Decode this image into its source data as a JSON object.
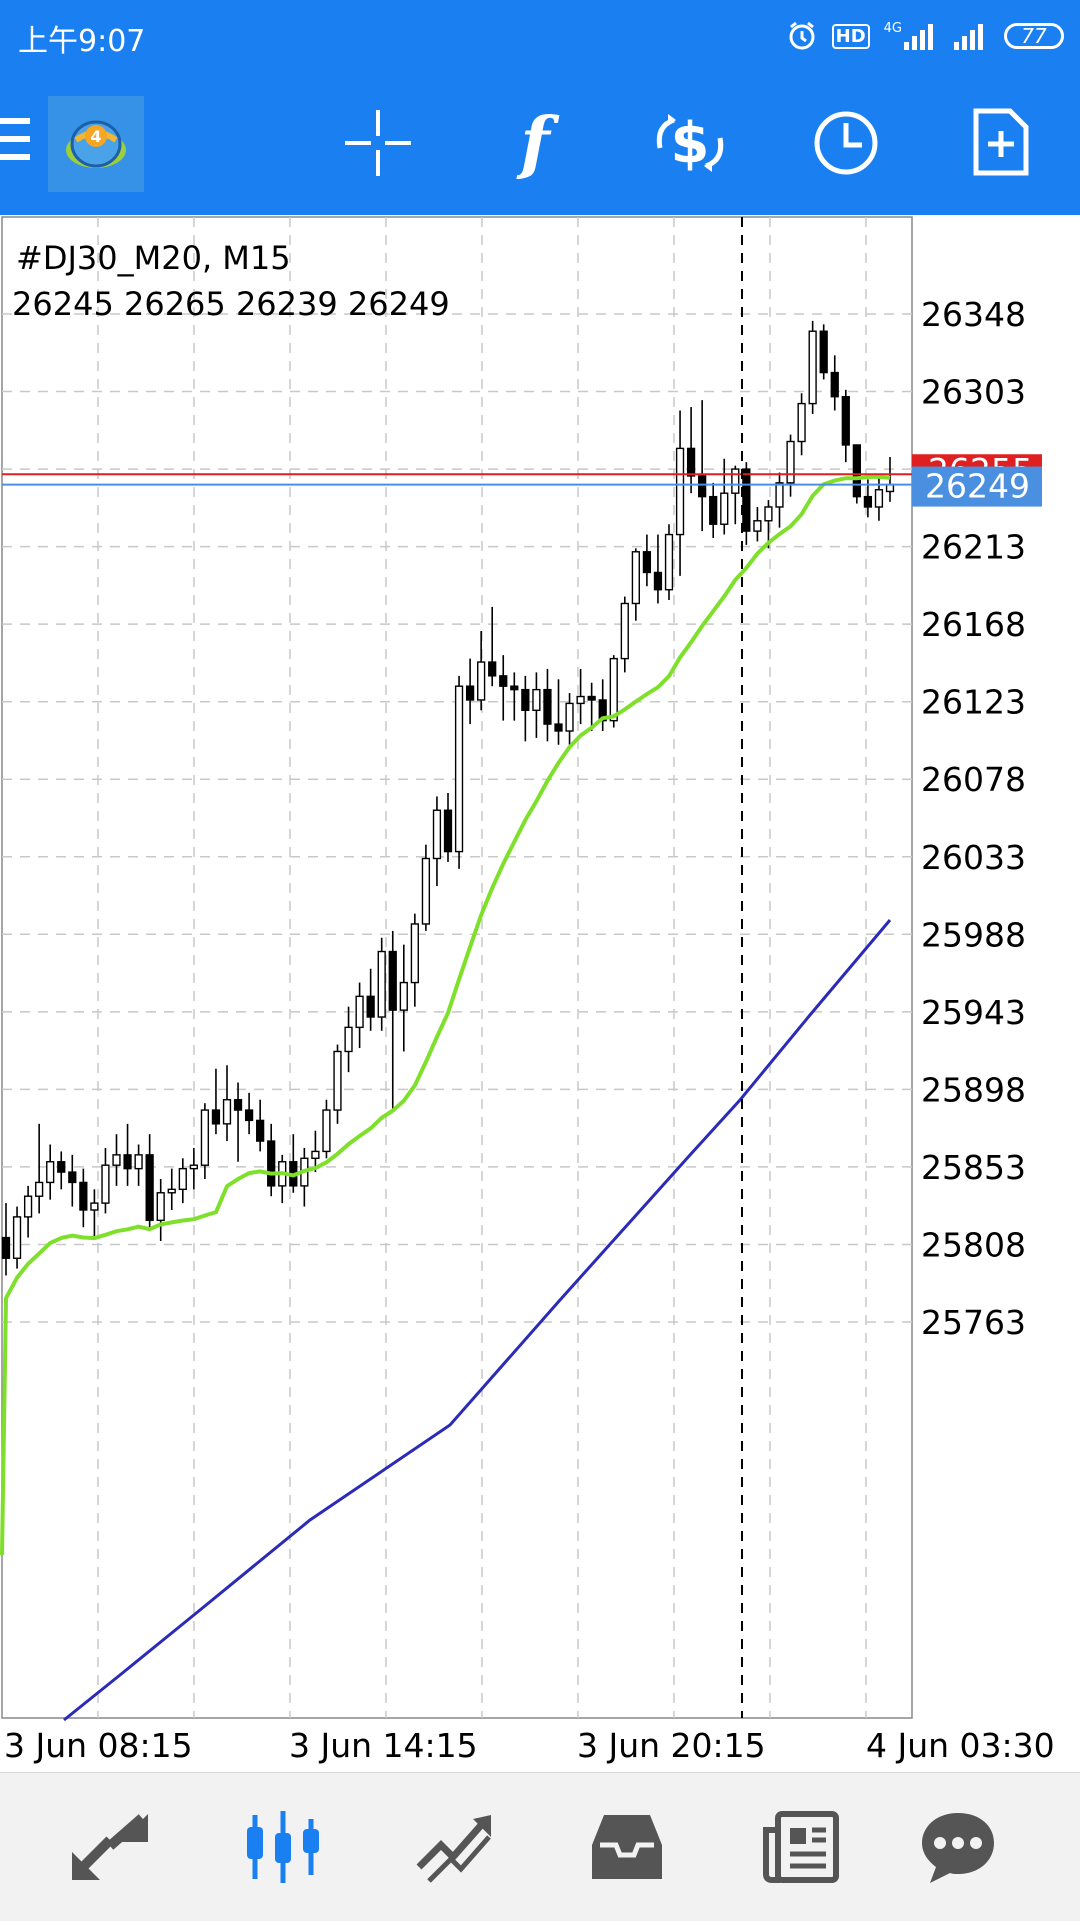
{
  "status_bar": {
    "time": "上午9:07",
    "hd": "HD",
    "net": "4G",
    "battery": "77"
  },
  "toolbar": {
    "icons": [
      "menu-icon",
      "metatrader-logo",
      "crosshair-icon",
      "indicators-icon",
      "trade-icon",
      "timeframe-icon",
      "new-order-icon"
    ],
    "indicators_glyph": "f"
  },
  "chart": {
    "symbol": "#DJ30_M20, M15",
    "ohlc": "26245 26265 26239 26249",
    "current_price": "26249",
    "bid_label_partial": "26255"
  },
  "chart_data": {
    "type": "candlestick",
    "price_axis_labels": [
      "26348",
      "26303",
      "26213",
      "26168",
      "26123",
      "26078",
      "26033",
      "25988",
      "25943",
      "25898",
      "25853",
      "25808",
      "25763"
    ],
    "time_axis_labels": [
      "3 Jun 08:15",
      "3 Jun 14:15",
      "3 Jun 20:15",
      "4 Jun 03:30"
    ],
    "ylim": [
      25720,
      26390
    ],
    "grid": true,
    "series": [
      {
        "name": "",
        "color": "#7ee02a",
        "kind": "moving-average"
      },
      {
        "name": "",
        "color": "#2b2bb8",
        "kind": "moving-average"
      }
    ],
    "candles": [
      [
        25812,
        25832,
        25790,
        25800
      ],
      [
        25800,
        25830,
        25794,
        25824
      ],
      [
        25824,
        25842,
        25812,
        25836
      ],
      [
        25836,
        25878,
        25826,
        25844
      ],
      [
        25844,
        25866,
        25834,
        25856
      ],
      [
        25856,
        25862,
        25840,
        25850
      ],
      [
        25850,
        25860,
        25830,
        25844
      ],
      [
        25844,
        25852,
        25818,
        25828
      ],
      [
        25828,
        25840,
        25812,
        25832
      ],
      [
        25832,
        25864,
        25826,
        25854
      ],
      [
        25854,
        25872,
        25842,
        25860
      ],
      [
        25860,
        25878,
        25842,
        25852
      ],
      [
        25852,
        25866,
        25842,
        25860
      ],
      [
        25860,
        25872,
        25818,
        25822
      ],
      [
        25822,
        25846,
        25810,
        25838
      ],
      [
        25838,
        25852,
        25828,
        25840
      ],
      [
        25840,
        25858,
        25832,
        25852
      ],
      [
        25852,
        25864,
        25840,
        25854
      ],
      [
        25854,
        25890,
        25846,
        25886
      ],
      [
        25886,
        25910,
        25872,
        25878
      ],
      [
        25878,
        25912,
        25868,
        25892
      ],
      [
        25892,
        25902,
        25856,
        25886
      ],
      [
        25886,
        25896,
        25872,
        25880
      ],
      [
        25880,
        25892,
        25862,
        25868
      ],
      [
        25868,
        25878,
        25836,
        25842
      ],
      [
        25842,
        25860,
        25832,
        25856
      ],
      [
        25856,
        25872,
        25838,
        25842
      ],
      [
        25842,
        25864,
        25830,
        25858
      ],
      [
        25858,
        25874,
        25850,
        25862
      ],
      [
        25862,
        25892,
        25858,
        25886
      ],
      [
        25886,
        25924,
        25878,
        25920
      ],
      [
        25920,
        25946,
        25908,
        25934
      ],
      [
        25934,
        25960,
        25922,
        25952
      ],
      [
        25952,
        25968,
        25932,
        25940
      ],
      [
        25940,
        25986,
        25932,
        25978
      ],
      [
        25978,
        25990,
        25886,
        25944
      ],
      [
        25944,
        25982,
        25920,
        25960
      ],
      [
        25960,
        26000,
        25946,
        25994
      ],
      [
        25994,
        26040,
        25990,
        26032
      ],
      [
        26032,
        26068,
        26016,
        26060
      ],
      [
        26060,
        26070,
        26030,
        26036
      ],
      [
        26036,
        26138,
        26026,
        26132
      ],
      [
        26132,
        26148,
        26110,
        26124
      ],
      [
        26124,
        26164,
        26118,
        26146
      ],
      [
        26146,
        26178,
        26132,
        26138
      ],
      [
        26138,
        26150,
        26112,
        26132
      ],
      [
        26132,
        26140,
        26112,
        26130
      ],
      [
        26130,
        26138,
        26100,
        26118
      ],
      [
        26118,
        26140,
        26102,
        26130
      ],
      [
        26130,
        26142,
        26100,
        26110
      ],
      [
        26110,
        26136,
        26098,
        26106
      ],
      [
        26106,
        26128,
        26098,
        26122
      ],
      [
        26122,
        26142,
        26110,
        26126
      ],
      [
        26126,
        26134,
        26106,
        26124
      ],
      [
        26124,
        26136,
        26106,
        26112
      ],
      [
        26112,
        26150,
        26108,
        26148
      ],
      [
        26148,
        26184,
        26140,
        26180
      ],
      [
        26180,
        26212,
        26170,
        26210
      ],
      [
        26210,
        26220,
        26190,
        26198
      ],
      [
        26198,
        26220,
        26180,
        26188
      ],
      [
        26188,
        26226,
        26182,
        26220
      ],
      [
        26220,
        26292,
        26196,
        26270
      ],
      [
        26270,
        26294,
        26244,
        26254
      ],
      [
        26254,
        26298,
        26222,
        26242
      ],
      [
        26242,
        26250,
        26218,
        26226
      ],
      [
        26226,
        26264,
        26220,
        26244
      ],
      [
        26244,
        26260,
        26226,
        26258
      ],
      [
        26258,
        26262,
        26214,
        26222
      ],
      [
        26222,
        26236,
        26216,
        26228
      ],
      [
        26228,
        26240,
        26212,
        26236
      ],
      [
        26236,
        26256,
        26224,
        26250
      ],
      [
        26250,
        26278,
        26242,
        26274
      ],
      [
        26274,
        26302,
        26266,
        26296
      ],
      [
        26296,
        26344,
        26290,
        26338
      ],
      [
        26338,
        26342,
        26310,
        26314
      ],
      [
        26314,
        26324,
        26292,
        26300
      ],
      [
        26300,
        26304,
        26262,
        26272
      ],
      [
        26272,
        26272,
        26238,
        26242
      ],
      [
        26242,
        26252,
        26230,
        26236
      ],
      [
        26236,
        26254,
        26228,
        26246
      ],
      [
        26245,
        26265,
        26239,
        26249
      ]
    ]
  },
  "bottom_nav": {
    "items": [
      "quotes-icon",
      "chart-icon",
      "trade-icon",
      "history-icon",
      "news-icon",
      "chat-icon"
    ]
  }
}
